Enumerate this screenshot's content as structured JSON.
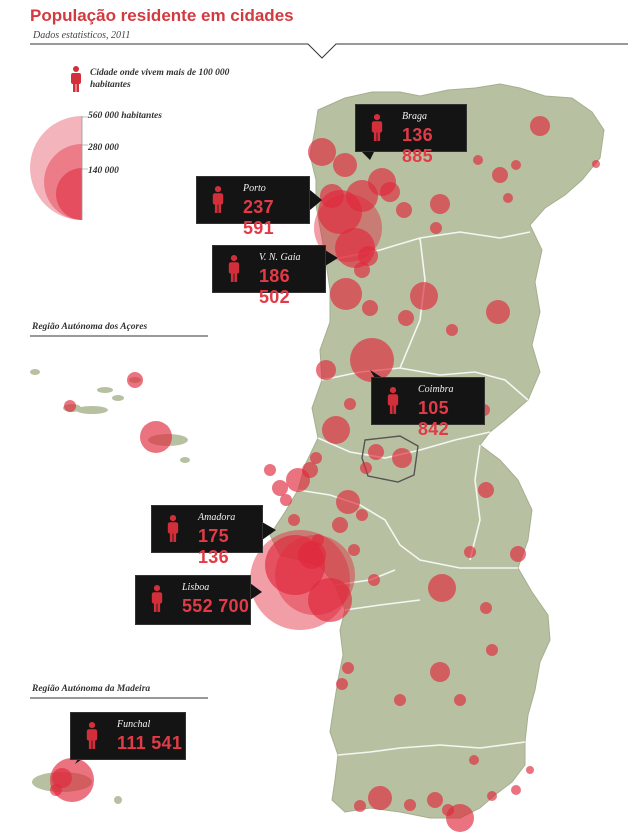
{
  "header": {
    "title": "População residente em cidades",
    "subtitle": "Dados estatisticos, 2011"
  },
  "legend": {
    "person_label": "Cidade onde vivem mais de 100 000 habitantes",
    "size_labels": [
      "560 000 habitantes",
      "280 000",
      "140 000"
    ]
  },
  "regions": {
    "azores": "Região Autónoma dos Açores",
    "madeira": "Região Autónoma da Madeira"
  },
  "colors": {
    "land": "#b7c1a2",
    "bubble": "#e0283c",
    "callout_bg": "#141414",
    "accent": "#e23b47"
  },
  "callouts": [
    {
      "city": "Braga",
      "population": "136 885"
    },
    {
      "city": "Porto",
      "population": "237 591"
    },
    {
      "city": "V. N. Gaia",
      "population": "186 502"
    },
    {
      "city": "Coimbra",
      "population": "105 842"
    },
    {
      "city": "Amadora",
      "population": "175 136"
    },
    {
      "city": "Lisboa",
      "population": "552 700"
    },
    {
      "city": "Funchal",
      "population": "111 541"
    }
  ]
}
